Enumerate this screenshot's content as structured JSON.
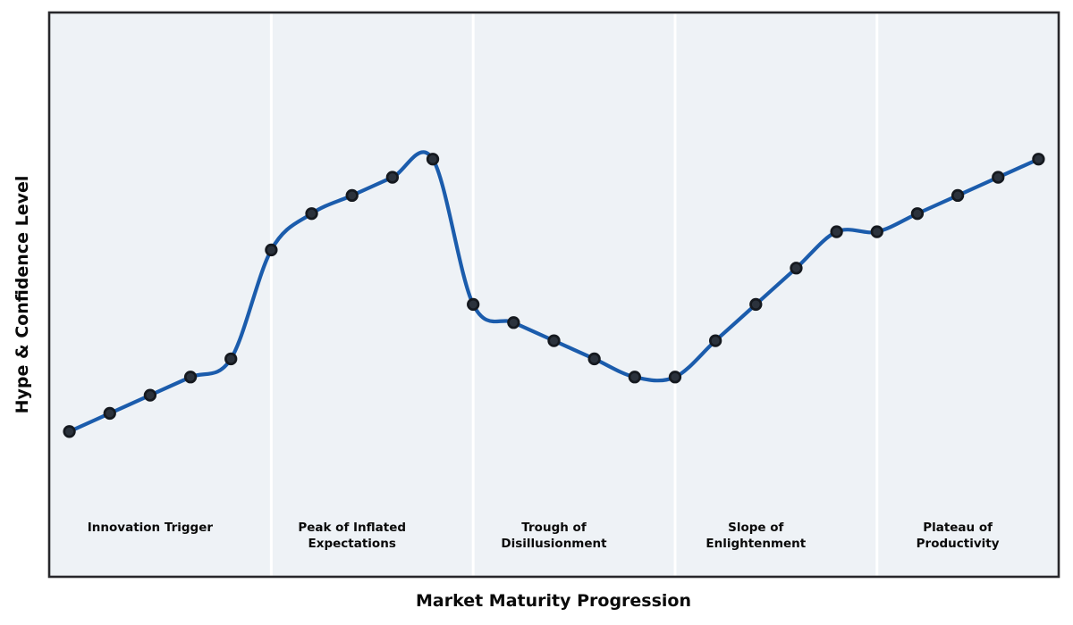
{
  "chart_data": {
    "type": "line",
    "title": "",
    "xlabel": "Market Maturity Progression",
    "ylabel": "Hype & Confidence Level",
    "x": [
      0,
      1,
      2,
      3,
      4,
      5,
      6,
      7,
      8,
      9,
      10,
      11,
      12,
      13,
      14,
      15,
      16,
      17,
      18,
      19,
      20,
      21,
      22,
      23,
      24
    ],
    "values": [
      30,
      34,
      38,
      42,
      46,
      70,
      78,
      82,
      86,
      90,
      58,
      54,
      50,
      46,
      42,
      42,
      50,
      58,
      66,
      74,
      74,
      78,
      82,
      86,
      90
    ],
    "xlim": [
      -0.5,
      24.5
    ],
    "ylim": [
      -2,
      122.3
    ],
    "grid": false,
    "legend": null,
    "line_style": "smooth-cubic-spline",
    "marker": "circle",
    "phase_boundaries_x": [
      5,
      10,
      15,
      20
    ],
    "phases": [
      {
        "label": "Innovation Trigger",
        "lines": [
          "Innovation Trigger"
        ],
        "center_x": 2
      },
      {
        "label": "Peak of Inflated Expectations",
        "lines": [
          "Peak of Inflated",
          "Expectations"
        ],
        "center_x": 7
      },
      {
        "label": "Trough of Disillusionment",
        "lines": [
          "Trough of",
          "Disillusionment"
        ],
        "center_x": 12
      },
      {
        "label": "Slope of Enlightenment",
        "lines": [
          "Slope of",
          "Enlightenment"
        ],
        "center_x": 17
      },
      {
        "label": "Plateau of Productivity",
        "lines": [
          "Plateau of",
          "Productivity"
        ],
        "center_x": 22
      }
    ],
    "colors": {
      "line": "#1b5cac",
      "marker_fill": "#2b323c",
      "marker_edge": "#15191f",
      "band_bg": "#eef2f6",
      "divider": "#ffffff",
      "spine": "#27272b",
      "text": "#0a0a0a",
      "figure_bg": "#ffffff"
    }
  }
}
